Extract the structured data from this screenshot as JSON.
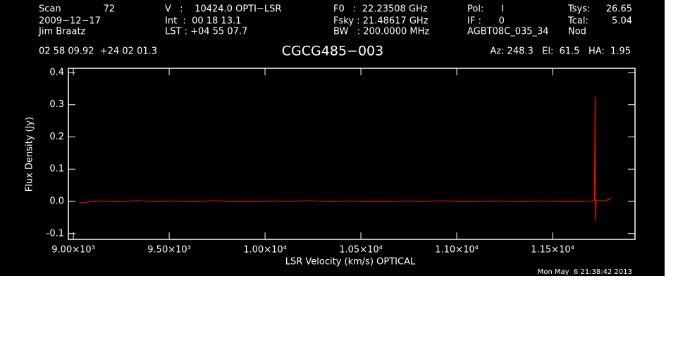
{
  "chart_data": {
    "type": "line",
    "title": "CGCG485−003",
    "x_label": "LSR Velocity (km/s) OPTICAL",
    "y_label": "Flux Density (Jy)",
    "header": [
      "Scan",
      "72",
      "2009−12−17",
      "Jim Braatz",
      "V   :    10424.0 OPTI−LSR",
      "Int  :  00 18 13.1",
      "LST : +04 55 07.7",
      "F0   :  22.23508 GHz",
      "Fsky : 21.48617 GHz",
      "BW   : 200.0000 MHz",
      "Pol:      I",
      "IF :      0",
      "AGBT08C_035_34",
      "Tsys:",
      "26.65",
      "Tcal:",
      "5.04",
      "Nod",
      "02 58 09.92  +24 02 01.3",
      "Az: 248.3   El:  61.5   HA:  1.95"
    ],
    "footer": "Mon May  6 21:38:42 2013",
    "x": [
      9030,
      9130,
      9230,
      9330,
      9430,
      9530,
      9630,
      9730,
      9830,
      9930,
      10030,
      10130,
      10230,
      10330,
      10430,
      10530,
      10630,
      10730,
      10830,
      10930,
      11030,
      11130,
      11230,
      11330,
      11430,
      11530,
      11630,
      11700,
      11718,
      11722,
      11724,
      11728,
      11760,
      11790,
      11810
    ],
    "series": [
      {
        "name": "spectrum",
        "color": "#ff0000",
        "values": [
          -0.005,
          0.001,
          -0.001,
          0.002,
          0.0,
          0.001,
          -0.001,
          0.002,
          0.0,
          -0.001,
          0.001,
          0.0,
          0.002,
          -0.001,
          0.001,
          0.0,
          -0.001,
          0.001,
          0.0,
          0.002,
          -0.001,
          0.0,
          0.001,
          -0.001,
          0.001,
          0.0,
          -0.001,
          0.001,
          0.005,
          0.325,
          -0.06,
          0.003,
          0.002,
          0.005,
          0.01
        ]
      }
    ],
    "xlim": [
      8974,
      11930
    ],
    "ylim": [
      -0.118,
      0.413
    ],
    "xticks": [
      {
        "value": 9000,
        "label": "9.00×10³"
      },
      {
        "value": 9500,
        "label": "9.50×10³"
      },
      {
        "value": 10000,
        "label": "1.00×10⁴"
      },
      {
        "value": 10500,
        "label": "1.05×10⁴"
      },
      {
        "value": 11000,
        "label": "1.10×10⁴"
      },
      {
        "value": 11500,
        "label": "1.15×10⁴"
      }
    ],
    "yticks": [
      -0.1,
      {
        "value": 0,
        "label": "0.0"
      },
      0.1,
      0.2,
      0.3,
      0.4
    ]
  }
}
